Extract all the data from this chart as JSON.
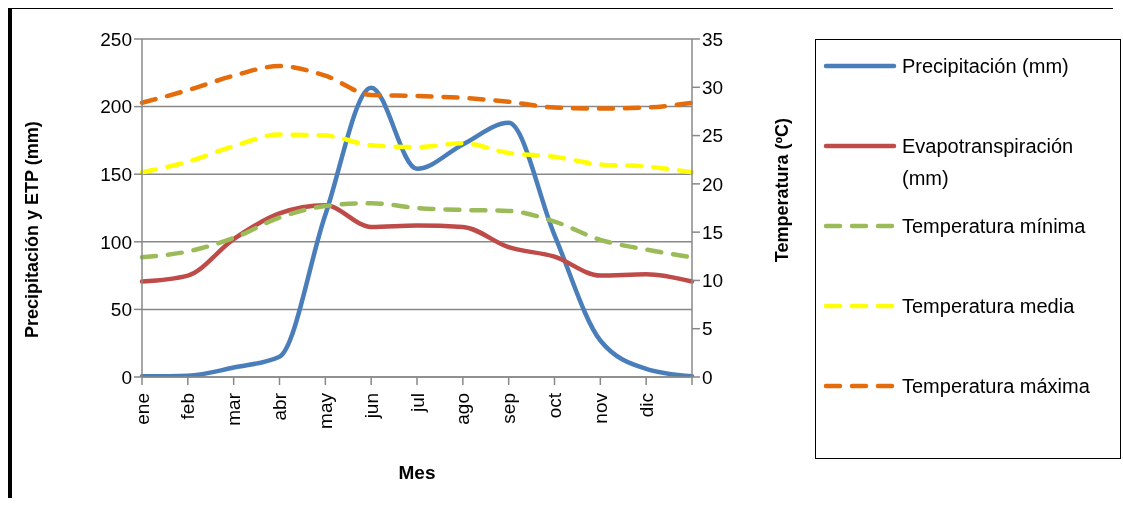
{
  "chart_data": {
    "type": "line",
    "categories": [
      "ene",
      "feb",
      "mar",
      "abr",
      "may",
      "jun",
      "jul",
      "ago",
      "sep",
      "oct",
      "nov",
      "dic",
      null
    ],
    "xlabel": "Mes",
    "ylabel": "Precipitación y ETP (mm)",
    "y2label": "Temperatura (ºC)",
    "ylim": [
      0,
      250
    ],
    "yticks": [
      0,
      50,
      100,
      150,
      200,
      250
    ],
    "y2lim": [
      0,
      35
    ],
    "y2ticks": [
      0,
      5,
      10,
      15,
      20,
      25,
      30,
      35
    ],
    "grid": "y",
    "legend": "right",
    "marker": "none",
    "series": [
      {
        "name": "Precipitación (mm)",
        "color": "#4a7ebb",
        "line_style": "solid",
        "values": [
          0.5,
          1,
          7,
          15,
          120,
          214,
          154,
          172,
          188,
          105,
          27,
          6,
          0.5
        ]
      },
      {
        "name": "Evapotranspiración (mm)",
        "color": "#be4b48",
        "line_style": "solid",
        "values": [
          70.6,
          75,
          102,
          121,
          127,
          111,
          112,
          111,
          96,
          89,
          75,
          76,
          70.6
        ]
      },
      {
        "name": "Temperatura mínima",
        "color": "#9bbb59",
        "line_style": "dashed",
        "axis": "y2",
        "values": [
          12.4,
          13,
          14.4,
          16.5,
          17.7,
          18,
          17.5,
          17.3,
          17.2,
          16.1,
          14.2,
          13.2,
          12.4
        ]
      },
      {
        "name": "Temperatura media",
        "color": "#ffff00",
        "line_style": "dashed",
        "axis": "y2",
        "values": [
          21.2,
          22.3,
          23.9,
          25.1,
          25,
          24,
          23.8,
          24.2,
          23.2,
          22.8,
          22,
          21.8,
          21.2
        ]
      },
      {
        "name": "Temperatura máxima",
        "color": "#e46c0a",
        "line_style": "dashed",
        "axis": "y2",
        "values": [
          28.4,
          29.7,
          31.2,
          32.2,
          31.2,
          29.2,
          29.1,
          28.9,
          28.5,
          27.9,
          27.8,
          27.9,
          28.4
        ]
      }
    ]
  }
}
